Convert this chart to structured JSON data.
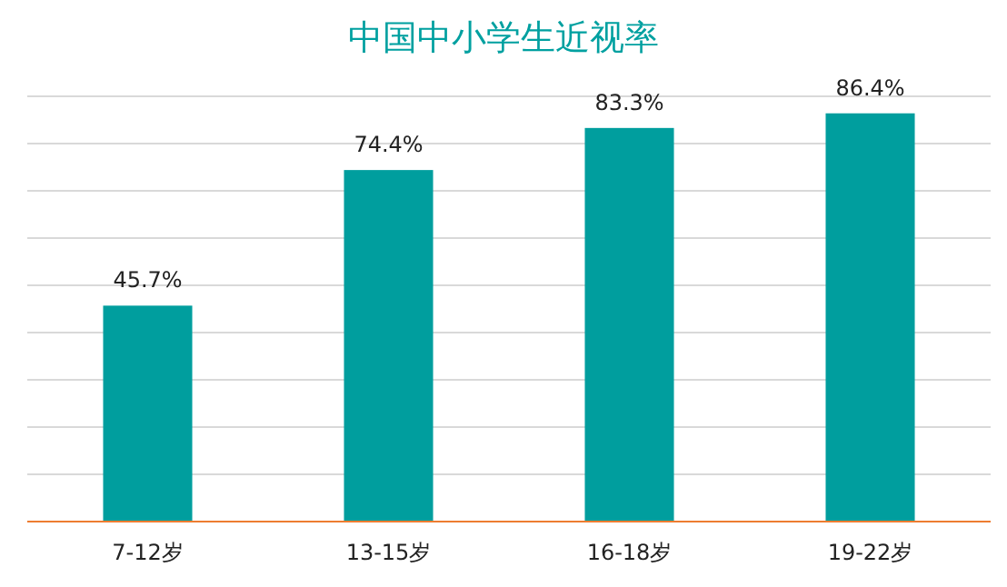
{
  "chart_data": {
    "type": "bar",
    "title": "中国中小学生近视率",
    "categories": [
      "7-12岁",
      "13-15岁",
      "16-18岁",
      "19-22岁"
    ],
    "values": [
      45.7,
      74.4,
      83.3,
      86.4
    ],
    "value_labels": [
      "45.7%",
      "74.4%",
      "83.3%",
      "86.4%"
    ],
    "color": "#009e9e",
    "ylim": [
      0,
      90
    ],
    "yticks": [
      {
        "value": 0,
        "label": null
      },
      {
        "value": 10,
        "label": null
      },
      {
        "value": 20,
        "label": null
      },
      {
        "value": 30,
        "label": null
      },
      {
        "value": 40,
        "label": null
      },
      {
        "value": 50,
        "label": null
      },
      {
        "value": 60,
        "label": null
      },
      {
        "value": 70,
        "label": null
      },
      {
        "value": 80,
        "label": null
      },
      {
        "value": 90,
        "label": null
      }
    ],
    "grid": "y",
    "tick_labels": "x"
  }
}
